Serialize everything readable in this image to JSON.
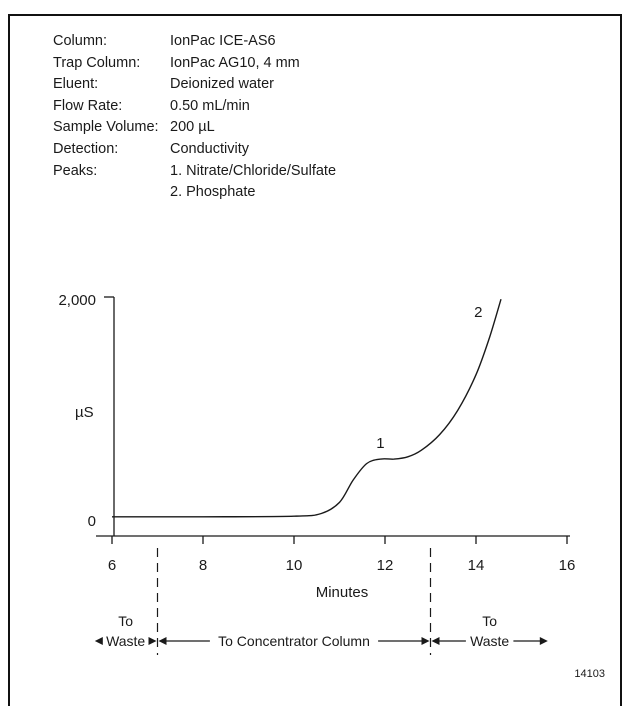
{
  "parameters": [
    {
      "label": "Column:",
      "value": "IonPac ICE-AS6"
    },
    {
      "label": "Trap Column:",
      "value": "IonPac AG10, 4 mm"
    },
    {
      "label": "Eluent:",
      "value": "Deionized water"
    },
    {
      "label": "Flow Rate:",
      "value": "0.50 mL/min"
    },
    {
      "label": "Sample Volume:",
      "value": "200 µL"
    },
    {
      "label": "Detection:",
      "value": "Conductivity"
    },
    {
      "label": "Peaks:",
      "value": "1.  Nitrate/Chloride/Sulfate\n2.  Phosphate"
    }
  ],
  "chart_data": {
    "type": "line",
    "xlabel": "Minutes",
    "ylabel": "µS",
    "xlim": [
      6,
      16
    ],
    "ylim": [
      0,
      2000
    ],
    "x_ticks": [
      6,
      8,
      10,
      12,
      14,
      16
    ],
    "x_tick_labels": [
      "6",
      "8",
      "10",
      "12",
      "14",
      "16"
    ],
    "y_tick_labels": [
      "0",
      "2,000"
    ],
    "series": [
      {
        "x": [
          6.0,
          8.0,
          10.0,
          10.6,
          11.0,
          11.3,
          11.6,
          11.9,
          12.2,
          12.5,
          12.8,
          13.2,
          13.6,
          14.0,
          14.3,
          14.55
        ],
        "y": [
          20,
          20,
          25,
          50,
          150,
          350,
          500,
          540,
          540,
          560,
          620,
          760,
          980,
          1300,
          1640,
          1980
        ]
      }
    ],
    "peak_labels": [
      {
        "text": "1",
        "x": 11.9,
        "y": 640
      },
      {
        "text": "2",
        "x": 14.05,
        "y": 1820
      }
    ],
    "markers": [
      7.0,
      13.0
    ],
    "regions": [
      {
        "line1": "To",
        "line2": "Waste",
        "from": 5.6,
        "to": 7.0
      },
      {
        "line1": "",
        "line2": "To Concentrator Column",
        "from": 7.0,
        "to": 13.0
      },
      {
        "line1": "To",
        "line2": "Waste",
        "from": 13.0,
        "to": 15.6
      }
    ],
    "figure_id": "14103"
  }
}
